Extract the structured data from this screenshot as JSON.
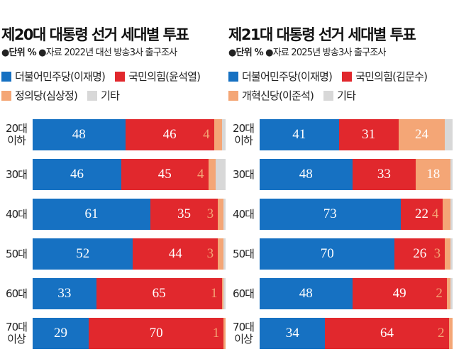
{
  "colors": {
    "blue": "#1671c2",
    "red": "#e1282d",
    "orange": "#f4a676",
    "gray": "#d8d8d8"
  },
  "chart_data": [
    {
      "type": "bar",
      "stacked": true,
      "orientation": "horizontal",
      "title": "제20대 대통령 선거 세대별 투표",
      "unit_label": "●단위 %",
      "source_label": "●자료 2022년 대선 방송3사 출구조사",
      "categories": [
        "20대 이하",
        "30대",
        "40대",
        "50대",
        "60대",
        "70대 이상"
      ],
      "series": [
        {
          "name": "더불어민주당(이재명)",
          "color": "blue",
          "values": [
            48,
            46,
            61,
            52,
            33,
            29
          ]
        },
        {
          "name": "국민의힘(윤석열)",
          "color": "red",
          "values": [
            46,
            45,
            35,
            44,
            65,
            70
          ]
        },
        {
          "name": "정의당(심상정)",
          "color": "orange",
          "values": [
            4,
            4,
            3,
            3,
            1,
            1
          ]
        },
        {
          "name": "기타",
          "color": "gray",
          "values": [
            2,
            5,
            1,
            1,
            1,
            0
          ]
        }
      ],
      "xlim": [
        0,
        100
      ]
    },
    {
      "type": "bar",
      "stacked": true,
      "orientation": "horizontal",
      "title": "제21대 대통령 선거 세대별 투표",
      "unit_label": "●단위 %",
      "source_label": "●자료 2025년 방송3사 출구조사",
      "categories": [
        "20대 이하",
        "30대",
        "40대",
        "50대",
        "60대",
        "70대 이상"
      ],
      "series": [
        {
          "name": "더불어민주당(이재명)",
          "color": "blue",
          "values": [
            41,
            48,
            73,
            70,
            48,
            34
          ]
        },
        {
          "name": "국민의힘(김문수)",
          "color": "red",
          "values": [
            31,
            33,
            22,
            26,
            49,
            64
          ]
        },
        {
          "name": "개혁신당(이준석)",
          "color": "orange",
          "values": [
            24,
            18,
            4,
            3,
            2,
            2
          ]
        },
        {
          "name": "기타",
          "color": "gray",
          "values": [
            4,
            1,
            1,
            1,
            1,
            0
          ]
        }
      ],
      "xlim": [
        0,
        100
      ]
    }
  ]
}
